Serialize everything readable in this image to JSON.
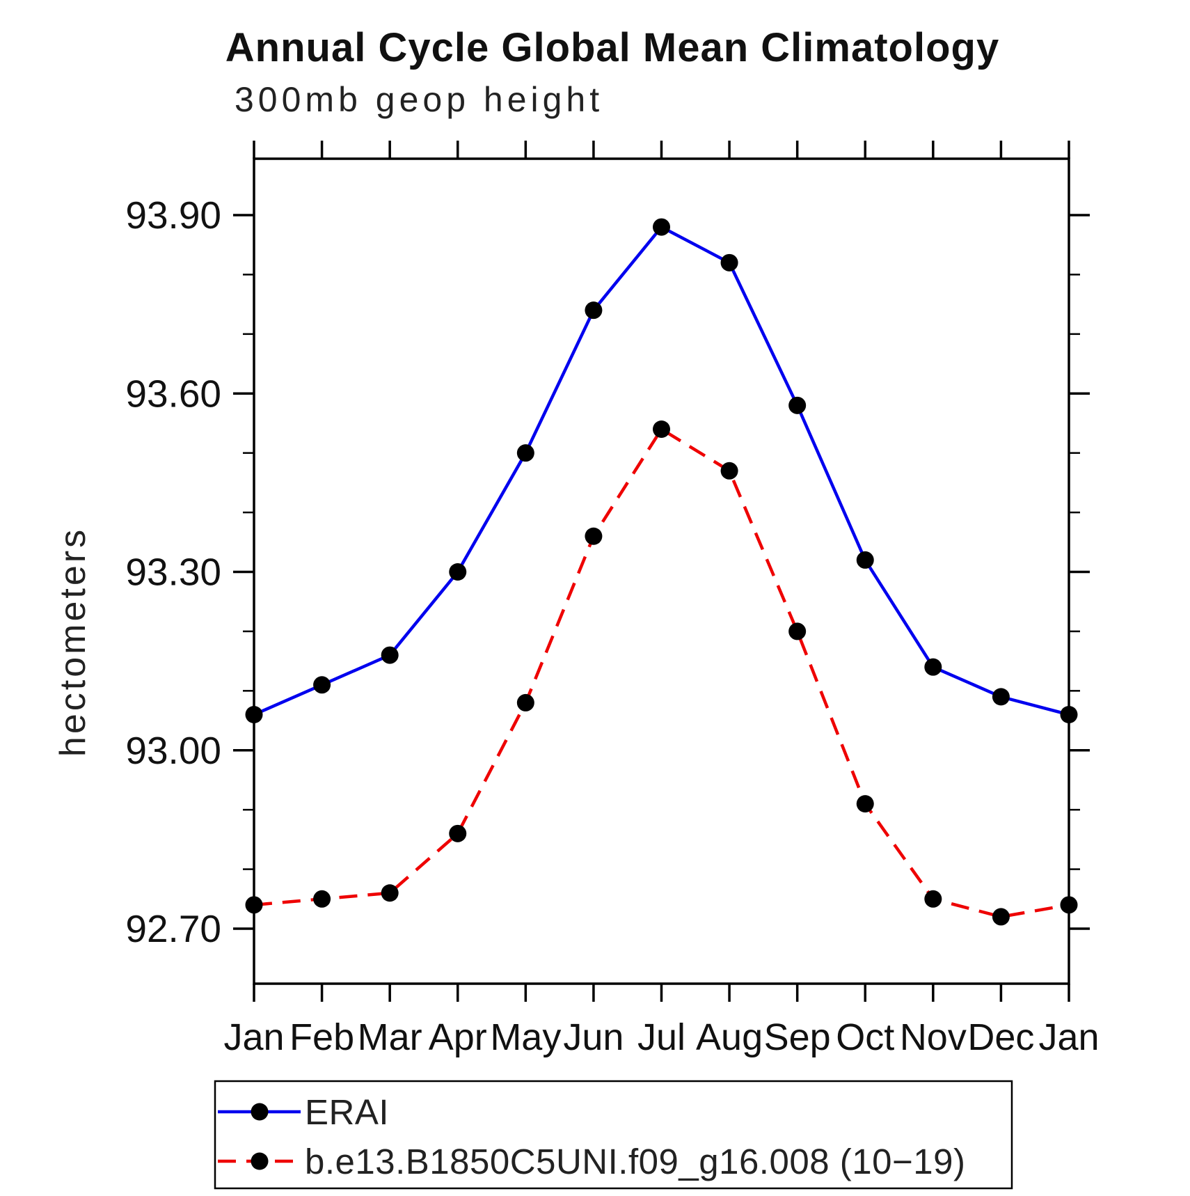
{
  "chart_data": {
    "type": "line",
    "title": "Annual Cycle Global Mean Climatology",
    "subtitle": "300mb geop height",
    "ylabel": "hectometers",
    "categories": [
      "Jan",
      "Feb",
      "Mar",
      "Apr",
      "May",
      "Jun",
      "Jul",
      "Aug",
      "Sep",
      "Oct",
      "Nov",
      "Dec",
      "Jan"
    ],
    "ylim": [
      92.61,
      94.0
    ],
    "ytick_major": [
      92.7,
      93.0,
      93.3,
      93.6,
      93.9
    ],
    "ytick_major_labels": [
      "92.70",
      "93.00",
      "93.30",
      "93.60",
      "93.90"
    ],
    "ytick_minor_step": 0.1,
    "grid": false,
    "legend_position": "bottom-left",
    "frame_color": "#000000",
    "marker_color": "#000000",
    "series": [
      {
        "name": "ERAI",
        "color": "#0000ee",
        "style": "solid",
        "marker": "circle",
        "values": [
          93.06,
          93.11,
          93.16,
          93.3,
          93.5,
          93.74,
          93.88,
          93.82,
          93.58,
          93.32,
          93.14,
          93.09,
          93.06
        ]
      },
      {
        "name": "b.e13.B1850C5UNI.f09_g16.008 (10−19)",
        "color": "#ee0000",
        "style": "dashed",
        "marker": "circle",
        "values": [
          92.74,
          92.75,
          92.76,
          92.86,
          93.08,
          93.36,
          93.54,
          93.47,
          93.2,
          92.91,
          92.75,
          92.72,
          92.74
        ]
      }
    ]
  }
}
